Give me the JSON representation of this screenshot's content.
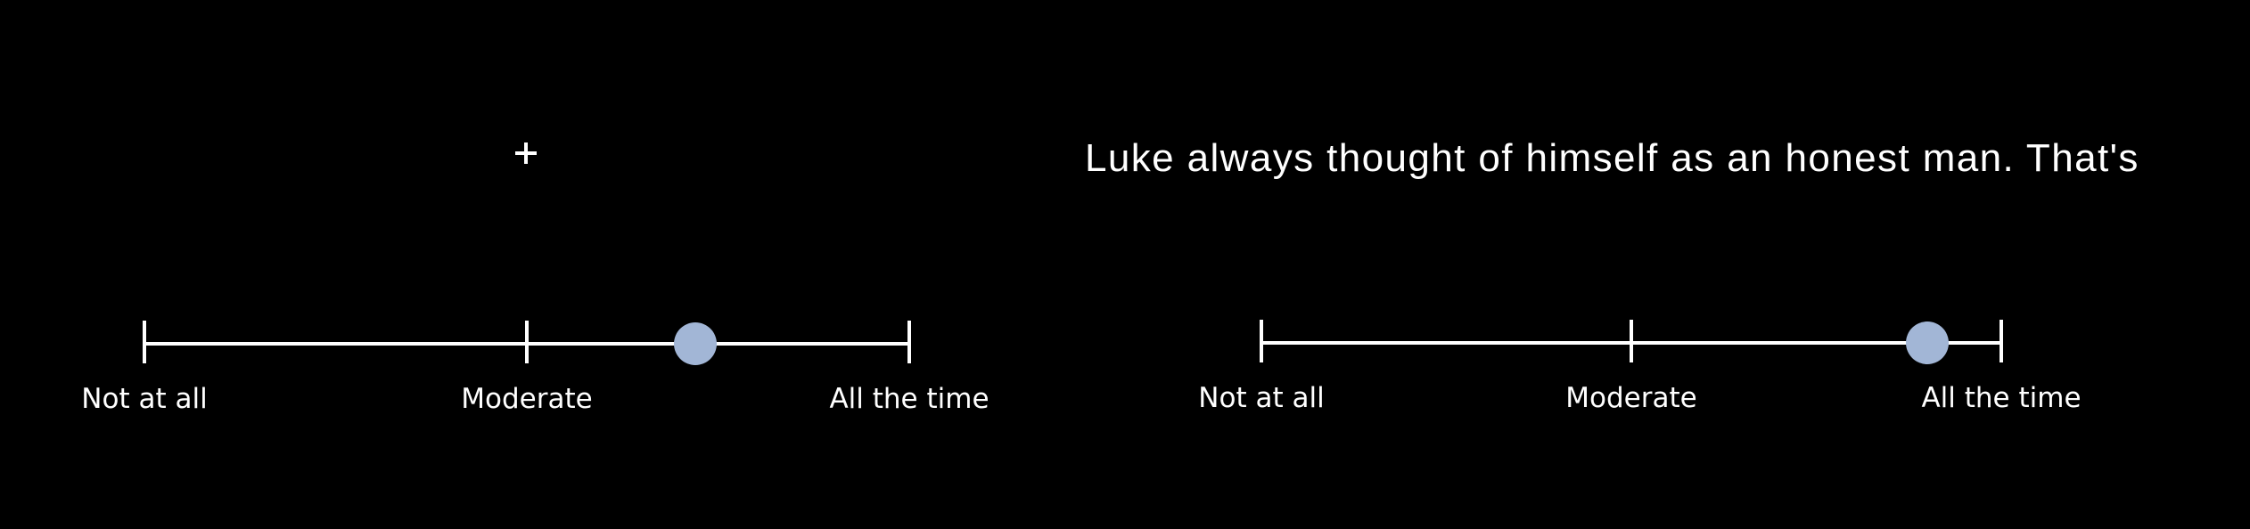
{
  "left_trial": {
    "fixation_icon": "plus-fixation-cross",
    "rating_scale": {
      "labels": [
        "Not at all",
        "Moderate",
        "All the time"
      ],
      "selected_fraction": 0.72,
      "marker_color": "#a2b6d6"
    }
  },
  "right_trial": {
    "sentence": "Luke always thought of himself as an honest man. That's",
    "rating_scale": {
      "labels": [
        "Not at all",
        "Moderate",
        "All the time"
      ],
      "selected_fraction": 0.9,
      "marker_color": "#a2b6d6"
    }
  },
  "colors": {
    "background": "#000000",
    "foreground": "#ffffff",
    "marker": "#a2b6d6"
  }
}
